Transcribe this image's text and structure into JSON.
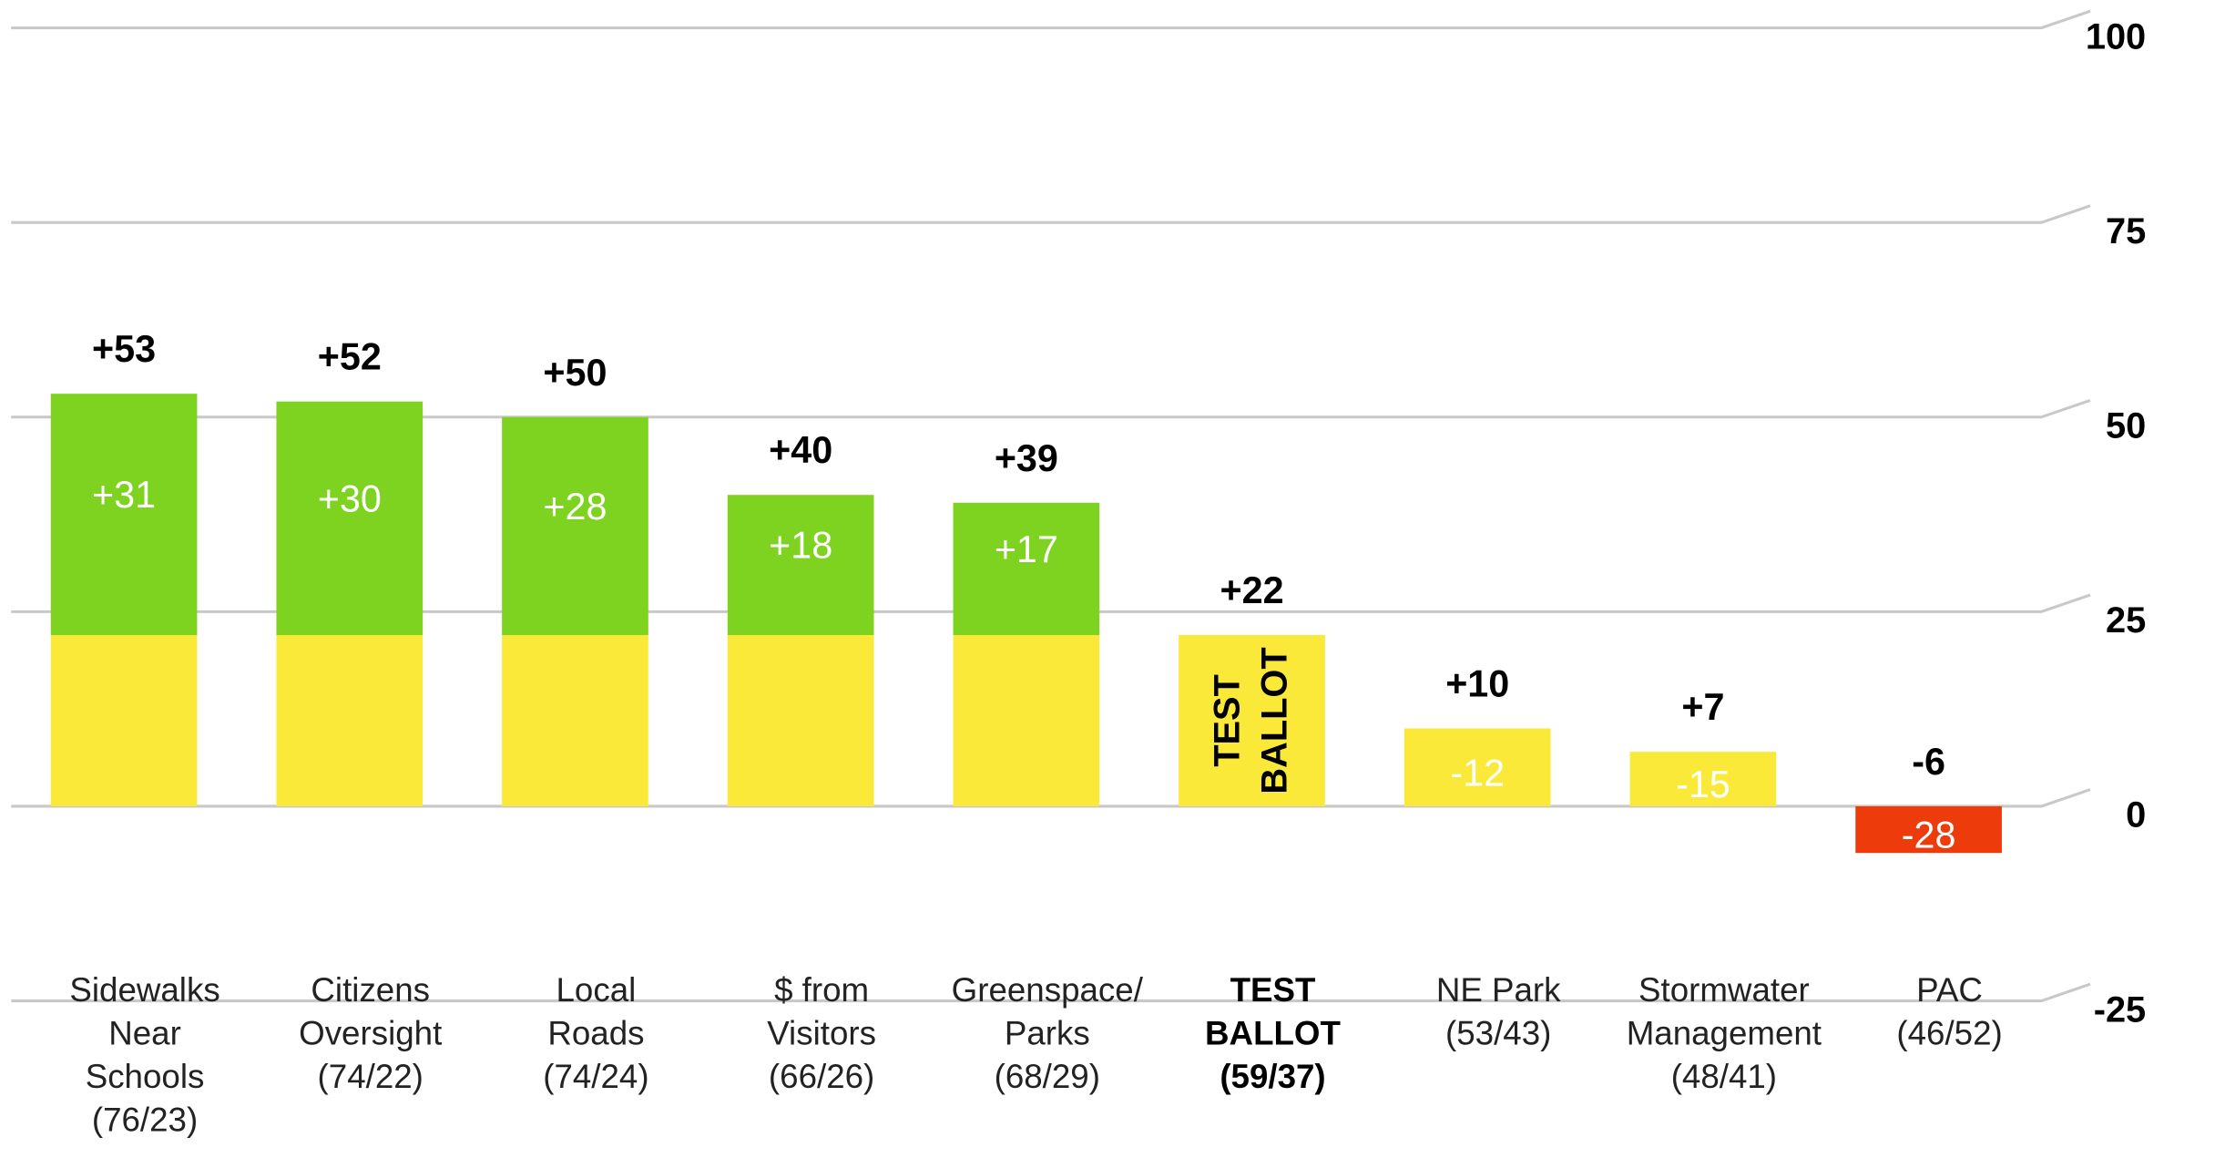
{
  "chart_data": {
    "type": "bar",
    "categories": [
      [
        "Sidewalks",
        "Near",
        "Schools",
        "(76/23)"
      ],
      [
        "Citizens",
        "Oversight",
        "(74/22)"
      ],
      [
        "Local",
        "Roads",
        "(74/24)"
      ],
      [
        "$ from",
        "Visitors",
        "(66/26)"
      ],
      [
        "Greenspace/",
        "Parks",
        "(68/29)"
      ],
      [
        "TEST",
        "BALLOT",
        "(59/37)"
      ],
      [
        "NE Park",
        "(53/43)"
      ],
      [
        "Stormwater",
        "Management",
        "(48/41)"
      ],
      [
        "PAC",
        "(46/52)"
      ]
    ],
    "totals": {
      "values": [
        53,
        52,
        50,
        40,
        39,
        22,
        10,
        7,
        -6
      ],
      "value_labels": [
        "+53",
        "+52",
        "+50",
        "+40",
        "+39",
        "+22",
        "+10",
        "+7",
        "-6"
      ]
    },
    "differences": {
      "values": [
        31,
        30,
        28,
        18,
        17,
        null,
        -12,
        -15,
        -28
      ],
      "value_labels": [
        "+31",
        "+30",
        "+28",
        "+18",
        "+17",
        null,
        "-12",
        "-15",
        "-28"
      ]
    },
    "annotation": [
      "TEST",
      "BALLOT"
    ],
    "highlight": 5,
    "colors": {
      "gain": "#7ed321",
      "base": "#fbe93a",
      "loss": "#ee3b0c"
    },
    "ylim": [
      -25,
      100
    ],
    "yticks": [
      -25,
      0,
      25,
      50,
      75,
      100
    ],
    "grid": true
  }
}
